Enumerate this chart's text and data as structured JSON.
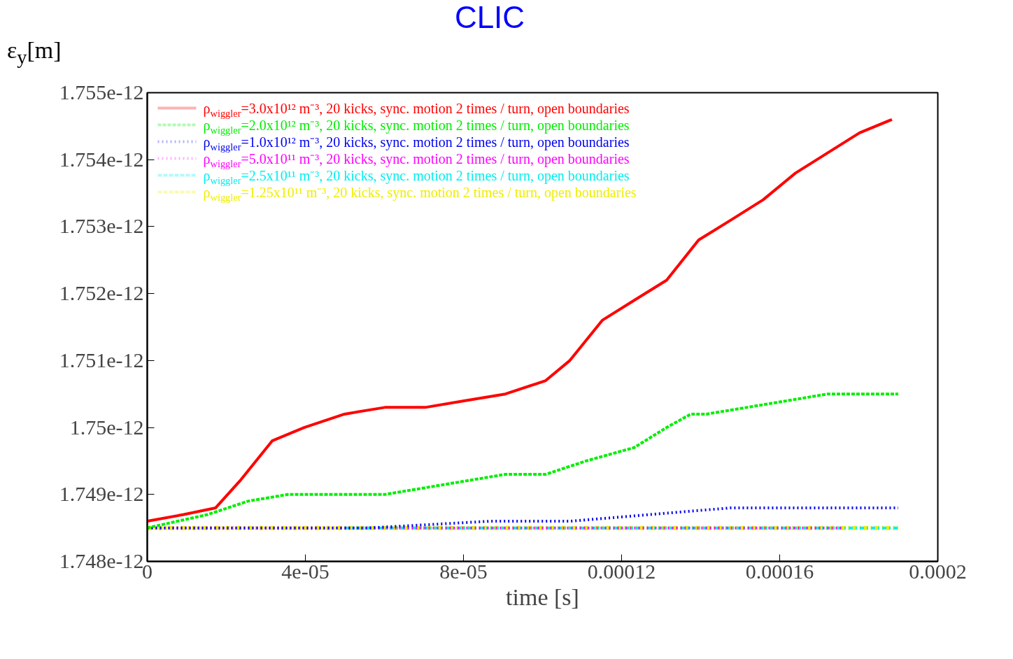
{
  "chart_data": {
    "type": "line",
    "title": "CLIC",
    "xlabel": "time [s]",
    "ylabel": "ε$_{y}$[m]",
    "xlim": [
      0,
      0.0002
    ],
    "ylim": [
      1.748e-12,
      1.755e-12
    ],
    "xticks": [
      {
        "value": 0,
        "label": "0"
      },
      {
        "value": 4e-05,
        "label": "4e-05"
      },
      {
        "value": 8e-05,
        "label": "8e-05"
      },
      {
        "value": 0.00012,
        "label": "0.00012"
      },
      {
        "value": 0.00016,
        "label": "0.00016"
      },
      {
        "value": 0.0002,
        "label": "0.0002"
      }
    ],
    "yticks": [
      {
        "value": 1.748e-12,
        "label": "1.748e-12"
      },
      {
        "value": 1.749e-12,
        "label": "1.749e-12"
      },
      {
        "value": 1.75e-12,
        "label": "1.75e-12"
      },
      {
        "value": 1.751e-12,
        "label": "1.751e-12"
      },
      {
        "value": 1.752e-12,
        "label": "1.752e-12"
      },
      {
        "value": 1.753e-12,
        "label": "1.753e-12"
      },
      {
        "value": 1.754e-12,
        "label": "1.754e-12"
      },
      {
        "value": 1.755e-12,
        "label": "1.755e-12"
      }
    ],
    "grid": false,
    "legend": "top left",
    "marker": "none",
    "series": [
      {
        "name": "ρ$_{wiggler}$=3.0x10¹² m⁻³, 20 kicks, sync. motion 2 times / turn, open boundaries",
        "color": "#ff0000",
        "line_style": "solid",
        "x": [
          0,
          9.2e-06,
          1.73e-05,
          2.34e-05,
          3.16e-05,
          3.97e-05,
          4.99e-05,
          6.01e-05,
          7.03e-05,
          8.04e-05,
          9.06e-05,
          0.0001008,
          0.0001069,
          0.0001151,
          0.0001232,
          0.0001314,
          0.0001395,
          0.0001477,
          0.0001558,
          0.000164,
          0.0001721,
          0.0001802,
          0.0001884
        ],
        "values": [
          1.7486e-12,
          1.7487e-12,
          1.7488e-12,
          1.7492e-12,
          1.7498e-12,
          1.75e-12,
          1.7502e-12,
          1.7503e-12,
          1.7503e-12,
          1.7504e-12,
          1.7505e-12,
          1.7507e-12,
          1.751e-12,
          1.7516e-12,
          1.7519e-12,
          1.7522e-12,
          1.7528e-12,
          1.7531e-12,
          1.7534e-12,
          1.7538e-12,
          1.7541e-12,
          1.7544e-12,
          1.7546e-12
        ]
      },
      {
        "name": "ρ$_{wiggler}$=2.0x10¹² m⁻³, 20 kicks, sync. motion 2 times / turn, open boundaries",
        "color": "#00ee00",
        "line_style": "dashed",
        "x": [
          0,
          1.53e-05,
          2.55e-05,
          3.56e-05,
          4.58e-05,
          6.01e-05,
          7.03e-05,
          8.04e-05,
          9.06e-05,
          0.0001008,
          0.000111,
          0.0001232,
          0.0001314,
          0.0001375,
          0.0001415,
          0.0001517,
          0.0001619,
          0.0001721,
          0.0001802,
          0.00019
        ],
        "values": [
          1.7485e-12,
          1.7487e-12,
          1.7489e-12,
          1.749e-12,
          1.749e-12,
          1.749e-12,
          1.7491e-12,
          1.7492e-12,
          1.7493e-12,
          1.7493e-12,
          1.7495e-12,
          1.7497e-12,
          1.75e-12,
          1.7502e-12,
          1.7502e-12,
          1.7503e-12,
          1.7504e-12,
          1.7505e-12,
          1.7505e-12,
          1.7505e-12
        ]
      },
      {
        "name": "ρ$_{wiggler}$=1.0x10¹² m⁻³, 20 kicks, sync. motion 2 times / turn, open boundaries",
        "color": "#0000ee",
        "line_style": "dotted",
        "x": [
          0,
          2.55e-05,
          5.6e-05,
          8.66e-05,
          0.0001069,
          0.0001273,
          0.0001477,
          0.000168,
          0.00019
        ],
        "values": [
          1.7485e-12,
          1.7485e-12,
          1.7485e-12,
          1.7486e-12,
          1.7486e-12,
          1.7487e-12,
          1.7488e-12,
          1.7488e-12,
          1.7488e-12
        ]
      },
      {
        "name": "ρ$_{wiggler}$=5.0x10¹¹ m⁻³, 20 kicks, sync. motion 2 times / turn, open boundaries",
        "color": "#ff00ff",
        "line_style": "dotted",
        "x": [
          0,
          8.66e-05,
          0.0001762
        ],
        "values": [
          1.7485e-12,
          1.7485e-12,
          1.7485e-12
        ]
      },
      {
        "name": "ρ$_{wiggler}$=2.5x10¹¹ m⁻³, 20 kicks, sync. motion 2 times / turn, open boundaries",
        "color": "#00eeee",
        "line_style": "dashdot",
        "x": [
          5e-05,
          0.0001,
          0.00019
        ],
        "values": [
          1.7485e-12,
          1.7485e-12,
          1.7485e-12
        ]
      },
      {
        "name": "ρ$_{wiggler}$=1.25x10¹¹ m⁻³, 20 kicks, sync. motion 2 times / turn, open boundaries",
        "color": "#eeee00",
        "line_style": "dashdot",
        "x": [
          0,
          0.00019
        ],
        "values": [
          1.7485e-12,
          1.7485e-12
        ]
      }
    ]
  }
}
